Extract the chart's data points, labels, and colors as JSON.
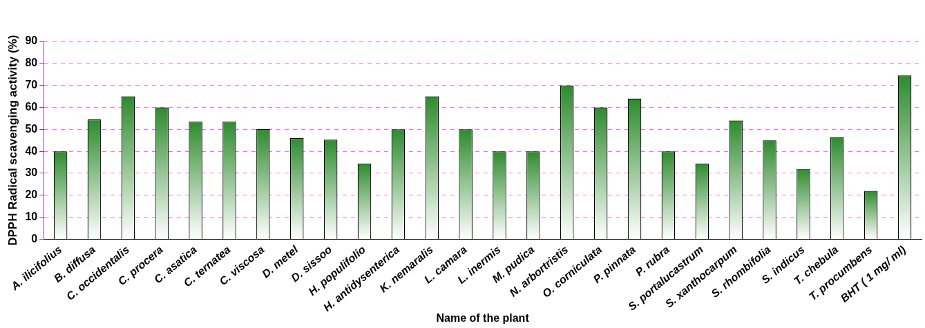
{
  "chart_data": {
    "type": "bar",
    "xlabel": "Name of the plant",
    "ylabel": "DPPH Radical scavenging activity (%)",
    "categories": [
      "A. ilicifolius",
      "B. diffusa",
      "C. occidentalis",
      "C. procera",
      "C. asatica",
      "C. ternatea",
      "C. viscosa",
      "D. metel",
      "D. sissoo",
      "H. populifolio",
      "H. antidysenterica",
      "K. nemaralis",
      "L. camara",
      "L. inermis",
      "M. pudica",
      "N. arbortristis",
      "O. corniculata",
      "P. pinnata",
      "P. rubra",
      "S. portalucastrum",
      "S. xanthocarpum",
      "S. rhombifolia",
      "S. indicus",
      "T. chebula",
      "T. procumbens",
      "BHT ( 1 mg/ ml)"
    ],
    "values": [
      40,
      54.5,
      65,
      60,
      53.5,
      53.5,
      50.2,
      46,
      45.3,
      34.5,
      50,
      65,
      50,
      40,
      40,
      70,
      60,
      64,
      40,
      34.5,
      54,
      45,
      32,
      46.5,
      22,
      74.5
    ],
    "color": "#2e8b2e",
    "ylim": [
      0,
      90
    ],
    "yticks": [
      0,
      10,
      20,
      30,
      40,
      50,
      60,
      70,
      80,
      90
    ],
    "grid": "y",
    "legend": false
  }
}
